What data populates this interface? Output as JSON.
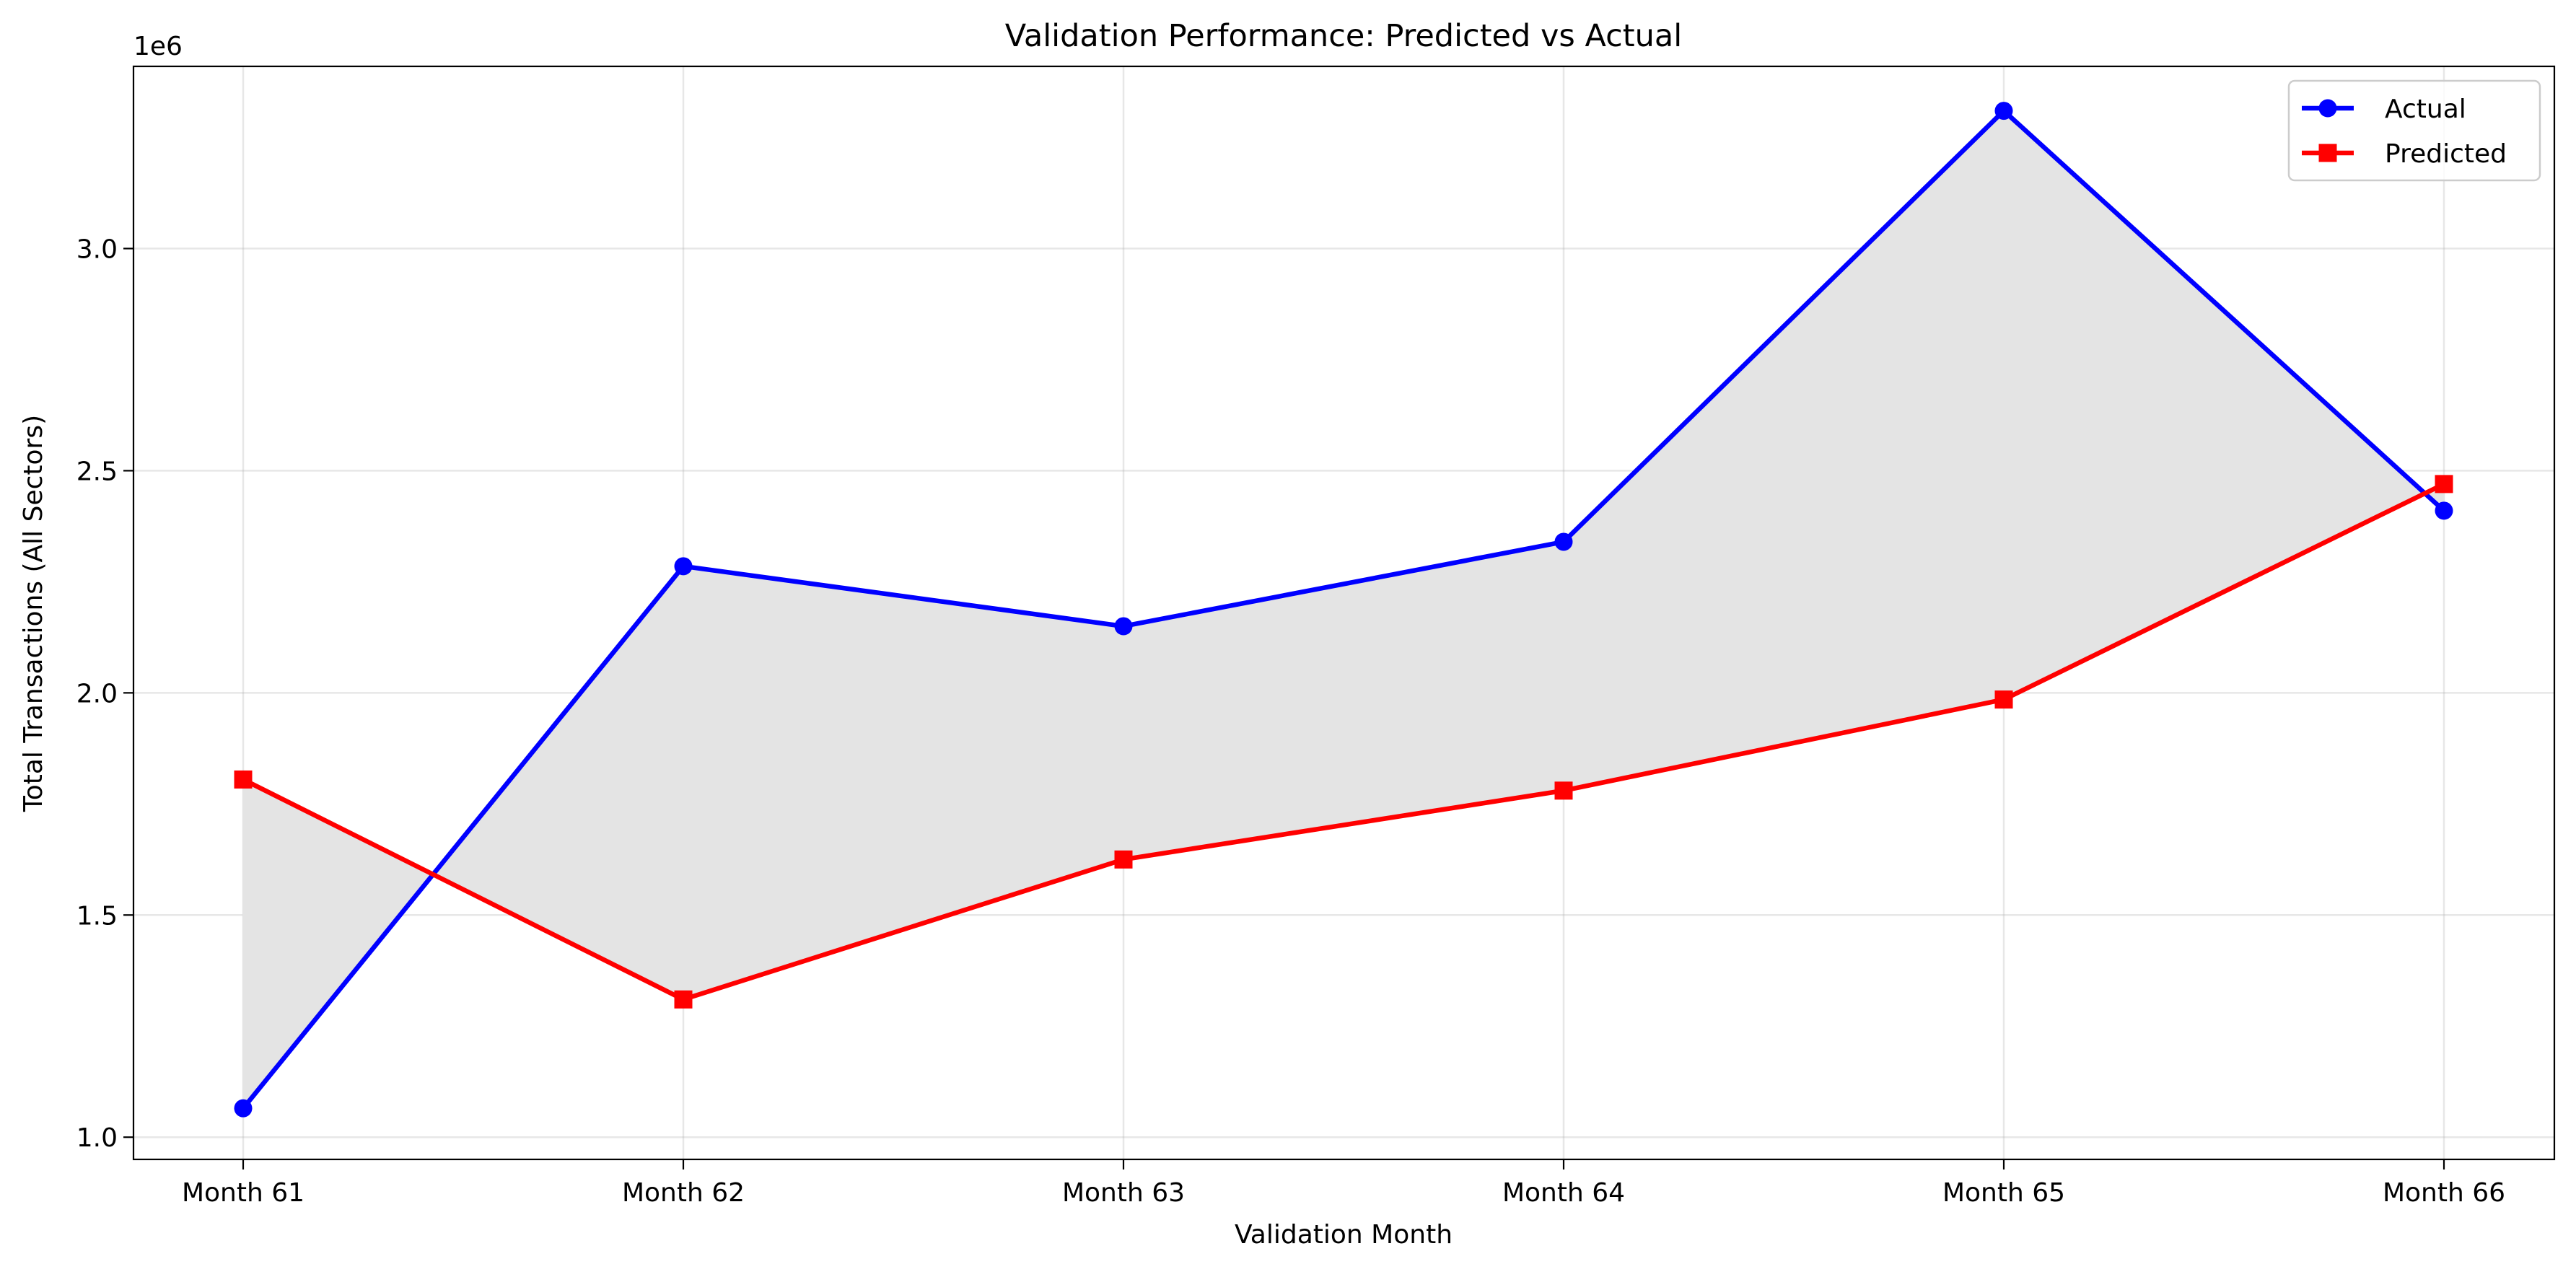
{
  "chart_data": {
    "type": "line",
    "title": "Validation Performance: Predicted vs Actual",
    "xlabel": "Validation Month",
    "ylabel": "Total Transactions (All Sectors)",
    "y_offset_label": "1e6",
    "y_scale_factor": 1000000,
    "categories": [
      "Month 61",
      "Month 62",
      "Month 63",
      "Month 64",
      "Month 65",
      "Month 66"
    ],
    "ylim": [
      950000,
      3410000
    ],
    "y_ticks": [
      1000000,
      1500000,
      2000000,
      2500000,
      3000000
    ],
    "y_tick_labels": [
      "1.0",
      "1.5",
      "2.0",
      "2.5",
      "3.0"
    ],
    "grid": true,
    "legend_position": "top-right",
    "fill_between": true,
    "series": [
      {
        "name": "Actual",
        "color": "#0000ff",
        "marker": "circle",
        "values": [
          1065000,
          2285000,
          2150000,
          2340000,
          3310000,
          2410000
        ]
      },
      {
        "name": "Predicted",
        "color": "#ff0000",
        "marker": "square",
        "values": [
          1805000,
          1310000,
          1625000,
          1780000,
          1985000,
          2470000
        ]
      }
    ],
    "fill_color": "#e4e4e4"
  }
}
